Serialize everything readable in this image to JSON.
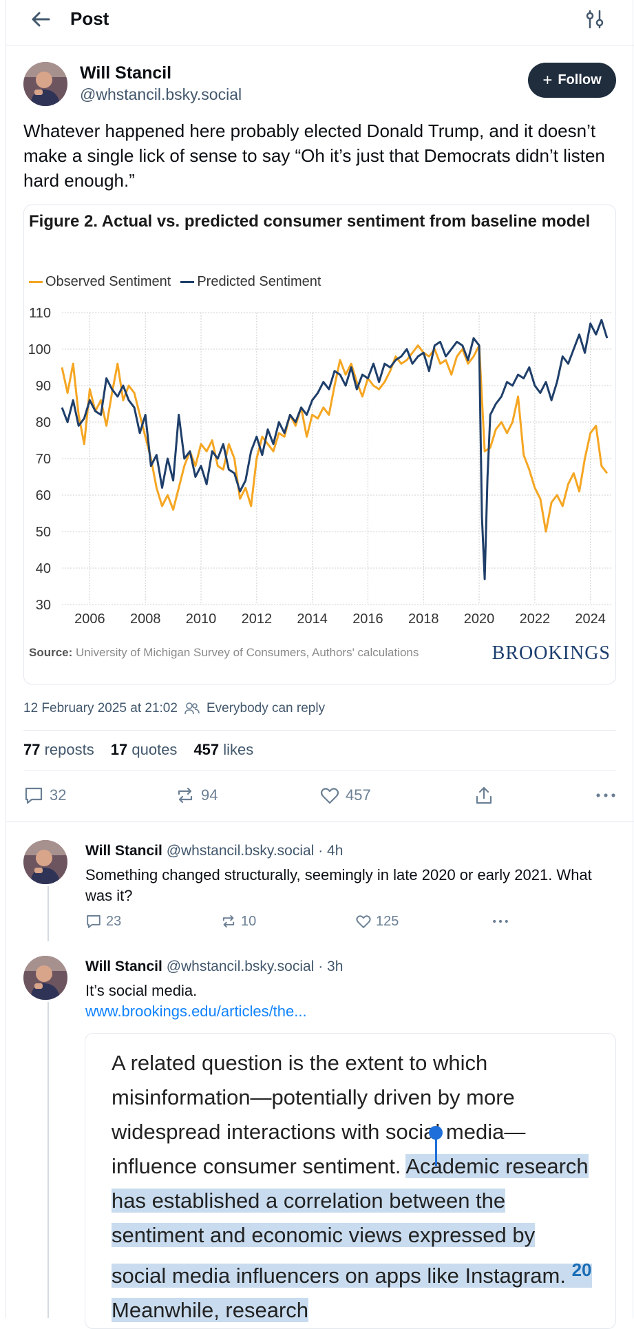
{
  "header": {
    "title": "Post"
  },
  "author": {
    "name": "Will Stancil",
    "handle": "@whstancil.bsky.social",
    "follow_label": "Follow"
  },
  "post": {
    "text": "Whatever happened here probably elected Donald Trump, and it doesn’t make a single lick of sense to say “Oh it’s just that Democrats didn’t listen hard enough.”",
    "timestamp": "12 February 2025 at 21:02",
    "reply_setting": "Everybody can reply",
    "reposts_count": "77",
    "reposts_label": "reposts",
    "quotes_count": "17",
    "quotes_label": "quotes",
    "likes_count": "457",
    "likes_label": "likes",
    "actions": {
      "replies": "32",
      "reposts": "94",
      "likes": "457"
    }
  },
  "figure": {
    "title": "Figure 2. Actual vs. predicted consumer sentiment from baseline model",
    "source_label": "Source:",
    "source_text": "University of Michigan Survey of Consumers, Authors' calculations",
    "brand": "BROOKINGS"
  },
  "chart_data": {
    "type": "line",
    "title": "Figure 2. Actual vs. predicted consumer sentiment from baseline model",
    "xlabel": "",
    "ylabel": "",
    "xlim": [
      2005.0,
      2024.8
    ],
    "ylim": [
      30,
      110
    ],
    "yticks": [
      110,
      100,
      90,
      80,
      70,
      60,
      50,
      40,
      30
    ],
    "xticks": [
      2006,
      2008,
      2010,
      2012,
      2014,
      2016,
      2018,
      2020,
      2022,
      2024
    ],
    "grid": true,
    "legend_position": "top-left",
    "series": [
      {
        "name": "Observed Sentiment",
        "color": "#f5a623",
        "x": [
          2005.0,
          2005.2,
          2005.4,
          2005.6,
          2005.8,
          2006.0,
          2006.2,
          2006.4,
          2006.6,
          2006.8,
          2007.0,
          2007.2,
          2007.4,
          2007.6,
          2007.8,
          2008.0,
          2008.2,
          2008.4,
          2008.6,
          2008.8,
          2009.0,
          2009.2,
          2009.4,
          2009.6,
          2009.8,
          2010.0,
          2010.2,
          2010.4,
          2010.6,
          2010.8,
          2011.0,
          2011.2,
          2011.4,
          2011.6,
          2011.8,
          2012.0,
          2012.2,
          2012.4,
          2012.6,
          2012.8,
          2013.0,
          2013.2,
          2013.4,
          2013.6,
          2013.8,
          2014.0,
          2014.2,
          2014.4,
          2014.6,
          2014.8,
          2015.0,
          2015.2,
          2015.4,
          2015.6,
          2015.8,
          2016.0,
          2016.2,
          2016.4,
          2016.6,
          2016.8,
          2017.0,
          2017.2,
          2017.4,
          2017.6,
          2017.8,
          2018.0,
          2018.2,
          2018.4,
          2018.6,
          2018.8,
          2019.0,
          2019.2,
          2019.4,
          2019.6,
          2019.8,
          2020.0,
          2020.2,
          2020.4,
          2020.6,
          2020.8,
          2021.0,
          2021.2,
          2021.4,
          2021.6,
          2021.8,
          2022.0,
          2022.2,
          2022.4,
          2022.6,
          2022.8,
          2023.0,
          2023.2,
          2023.4,
          2023.6,
          2023.8,
          2024.0,
          2024.2,
          2024.4,
          2024.6
        ],
        "y": [
          95,
          88,
          96,
          82,
          74,
          89,
          83,
          86,
          79,
          88,
          96,
          86,
          90,
          88,
          82,
          76,
          70,
          62,
          57,
          60,
          56,
          62,
          68,
          72,
          68,
          74,
          72,
          75,
          68,
          67,
          74,
          70,
          59,
          62,
          57,
          70,
          76,
          74,
          72,
          77,
          76,
          82,
          79,
          84,
          76,
          82,
          81,
          84,
          82,
          90,
          97,
          93,
          96,
          91,
          87,
          92,
          90,
          89,
          91,
          94,
          98,
          96,
          97,
          99,
          101,
          99,
          98,
          100,
          96,
          97,
          93,
          98,
          100,
          96,
          98,
          101,
          72,
          73,
          78,
          80,
          77,
          80,
          87,
          71,
          67,
          62,
          59,
          50,
          58,
          60,
          57,
          63,
          66,
          61,
          70,
          77,
          79,
          68,
          66
        ]
      },
      {
        "name": "Predicted Sentiment",
        "color": "#1f3f6a",
        "x": [
          2005.0,
          2005.2,
          2005.4,
          2005.6,
          2005.8,
          2006.0,
          2006.2,
          2006.4,
          2006.6,
          2006.8,
          2007.0,
          2007.2,
          2007.4,
          2007.6,
          2007.8,
          2008.0,
          2008.2,
          2008.4,
          2008.6,
          2008.8,
          2009.0,
          2009.2,
          2009.4,
          2009.6,
          2009.8,
          2010.0,
          2010.2,
          2010.4,
          2010.6,
          2010.8,
          2011.0,
          2011.2,
          2011.4,
          2011.6,
          2011.8,
          2012.0,
          2012.2,
          2012.4,
          2012.6,
          2012.8,
          2013.0,
          2013.2,
          2013.4,
          2013.6,
          2013.8,
          2014.0,
          2014.2,
          2014.4,
          2014.6,
          2014.8,
          2015.0,
          2015.2,
          2015.4,
          2015.6,
          2015.8,
          2016.0,
          2016.2,
          2016.4,
          2016.6,
          2016.8,
          2017.0,
          2017.2,
          2017.4,
          2017.6,
          2017.8,
          2018.0,
          2018.2,
          2018.4,
          2018.6,
          2018.8,
          2019.0,
          2019.2,
          2019.4,
          2019.6,
          2019.8,
          2020.0,
          2020.1,
          2020.2,
          2020.3,
          2020.4,
          2020.6,
          2020.8,
          2021.0,
          2021.2,
          2021.4,
          2021.6,
          2021.8,
          2022.0,
          2022.2,
          2022.4,
          2022.6,
          2022.8,
          2023.0,
          2023.2,
          2023.4,
          2023.6,
          2023.8,
          2024.0,
          2024.2,
          2024.4,
          2024.6
        ],
        "y": [
          84,
          80,
          86,
          79,
          81,
          86,
          83,
          82,
          92,
          89,
          87,
          90,
          86,
          84,
          77,
          82,
          68,
          71,
          62,
          70,
          64,
          82,
          70,
          72,
          65,
          68,
          63,
          72,
          70,
          74,
          67,
          66,
          61,
          64,
          72,
          76,
          71,
          78,
          74,
          80,
          77,
          82,
          80,
          84,
          82,
          86,
          88,
          91,
          89,
          94,
          93,
          90,
          95,
          89,
          93,
          92,
          96,
          91,
          96,
          95,
          97,
          98,
          100,
          96,
          98,
          99,
          94,
          101,
          102,
          98,
          100,
          102,
          101,
          97,
          103,
          101,
          54,
          37,
          65,
          82,
          85,
          87,
          91,
          90,
          93,
          92,
          95,
          90,
          88,
          91,
          86,
          91,
          98,
          96,
          100,
          104,
          99,
          107,
          104,
          108,
          103
        ]
      }
    ]
  },
  "replies": [
    {
      "name": "Will Stancil",
      "handle": "@whstancil.bsky.social",
      "time": "· 4h",
      "text": "Something changed structurally, seemingly in late 2020 or early 2021. What was it?",
      "replies": "23",
      "reposts": "10",
      "likes": "125"
    },
    {
      "name": "Will Stancil",
      "handle": "@whstancil.bsky.social",
      "time": "· 3h",
      "text": "It’s social media.",
      "link": "www.brookings.edu/articles/the..."
    }
  ],
  "quote": {
    "text_plain": "A related question is the extent to which misinformation—potentially driven by more widespread interactions with social media—influence consumer sentiment. ",
    "text_selected_1": "Academic research has established a correlation between the sentiment and economic views expressed by social media influencers on apps like Instagram.",
    "footnote": "20",
    "text_selected_2": " Meanwhile, research"
  }
}
